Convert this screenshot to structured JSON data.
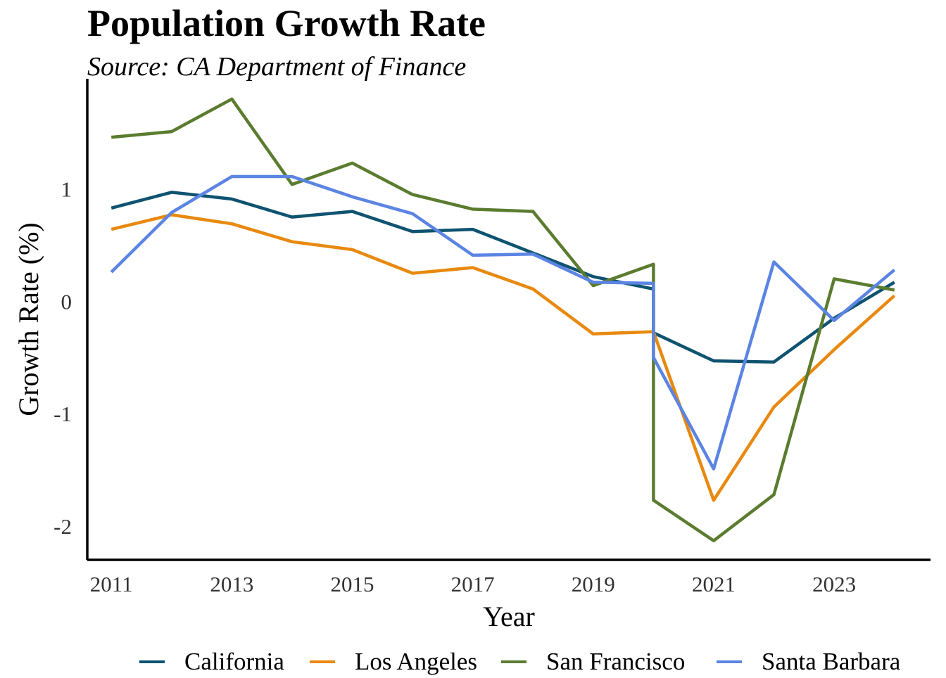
{
  "chart_data": {
    "type": "line",
    "title": "Population Growth Rate",
    "subtitle": "Source: CA Department of Finance",
    "xlabel": "Year",
    "ylabel": "Growth Rate (%)",
    "xlim": [
      2010.6,
      2024.6
    ],
    "ylim": [
      -2.3,
      1.98
    ],
    "x_ticks": [
      2011,
      2013,
      2015,
      2017,
      2019,
      2021,
      2023
    ],
    "y_ticks": [
      -2,
      -1,
      0,
      1
    ],
    "y_tick_labels": [
      "-2",
      "-1",
      "0",
      "1"
    ],
    "grid": false,
    "legend": "bottom",
    "series": [
      {
        "name": "California",
        "color": "#0e5370",
        "points": [
          [
            2011,
            0.83
          ],
          [
            2012,
            0.97
          ],
          [
            2013,
            0.91
          ],
          [
            2014,
            0.75
          ],
          [
            2015,
            0.8
          ],
          [
            2016,
            0.62
          ],
          [
            2017,
            0.64
          ],
          [
            2018,
            0.43
          ],
          [
            2019,
            0.22
          ],
          [
            2020,
            0.11
          ],
          [
            2020,
            -0.28
          ],
          [
            2021,
            -0.53
          ],
          [
            2022,
            -0.54
          ],
          [
            2023,
            -0.15
          ],
          [
            2024,
            0.17
          ]
        ]
      },
      {
        "name": "Los Angeles",
        "color": "#e8890f",
        "points": [
          [
            2011,
            0.64
          ],
          [
            2012,
            0.77
          ],
          [
            2013,
            0.69
          ],
          [
            2014,
            0.53
          ],
          [
            2015,
            0.46
          ],
          [
            2016,
            0.25
          ],
          [
            2017,
            0.3
          ],
          [
            2018,
            0.11
          ],
          [
            2019,
            -0.29
          ],
          [
            2020,
            -0.27
          ],
          [
            2021,
            -1.77
          ],
          [
            2022,
            -0.94
          ],
          [
            2023,
            -0.43
          ],
          [
            2024,
            0.05
          ]
        ]
      },
      {
        "name": "San Francisco",
        "color": "#5b7c2f",
        "points": [
          [
            2011,
            1.46
          ],
          [
            2012,
            1.51
          ],
          [
            2013,
            1.8
          ],
          [
            2014,
            1.04
          ],
          [
            2015,
            1.23
          ],
          [
            2016,
            0.95
          ],
          [
            2017,
            0.82
          ],
          [
            2018,
            0.8
          ],
          [
            2019,
            0.14
          ],
          [
            2020,
            0.33
          ],
          [
            2020,
            -1.77
          ],
          [
            2021,
            -2.13
          ],
          [
            2022,
            -1.72
          ],
          [
            2023,
            0.2
          ],
          [
            2024,
            0.1
          ]
        ]
      },
      {
        "name": "Santa Barbara",
        "color": "#5b84e3",
        "points": [
          [
            2011,
            0.26
          ],
          [
            2012,
            0.79
          ],
          [
            2013,
            1.11
          ],
          [
            2014,
            1.11
          ],
          [
            2015,
            0.93
          ],
          [
            2016,
            0.78
          ],
          [
            2017,
            0.41
          ],
          [
            2018,
            0.42
          ],
          [
            2019,
            0.17
          ],
          [
            2020,
            0.16
          ],
          [
            2020,
            -0.5
          ],
          [
            2021,
            -1.49
          ],
          [
            2022,
            0.35
          ],
          [
            2023,
            -0.17
          ],
          [
            2024,
            0.28
          ]
        ]
      }
    ]
  }
}
